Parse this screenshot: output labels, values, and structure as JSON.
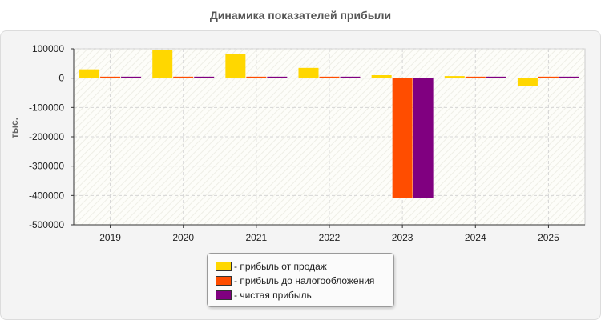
{
  "chart_data": {
    "type": "bar",
    "title": "Динамика показателей прибыли",
    "ylabel": "тыс.",
    "xlabel": "",
    "categories": [
      "2019",
      "2020",
      "2021",
      "2022",
      "2023",
      "2024",
      "2025"
    ],
    "ylim": [
      -500000,
      100000
    ],
    "yticks": [
      100000,
      0,
      -100000,
      -200000,
      -300000,
      -400000,
      -500000
    ],
    "ytick_labels": [
      "100000",
      "0",
      "-100000",
      "-200000",
      "-300000",
      "-400000",
      "-500000"
    ],
    "grid": true,
    "legend_position": "bottom",
    "series": [
      {
        "name": "прибыль от продаж",
        "color": "#ffd700",
        "values": [
          30000,
          95000,
          82000,
          35000,
          10000,
          7000,
          -27000
        ]
      },
      {
        "name": "прибыль до налогообложения",
        "color": "#ff4d00",
        "values": [
          5000,
          5000,
          5000,
          5000,
          -410000,
          5000,
          5000
        ]
      },
      {
        "name": "чистая прибыль",
        "color": "#800080",
        "values": [
          5000,
          5000,
          5000,
          5000,
          -410000,
          5000,
          5000
        ]
      }
    ]
  }
}
